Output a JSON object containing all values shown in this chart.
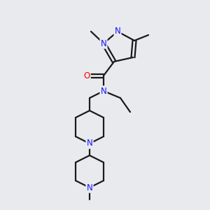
{
  "background_color": "#e8eaed",
  "bond_color": "#1a1a1a",
  "bond_width": 1.6,
  "atom_colors": {
    "N": "#1414ff",
    "O": "#ff0000",
    "C": "#1a1a1a"
  },
  "figsize": [
    3.0,
    3.0
  ],
  "dpi": 100
}
